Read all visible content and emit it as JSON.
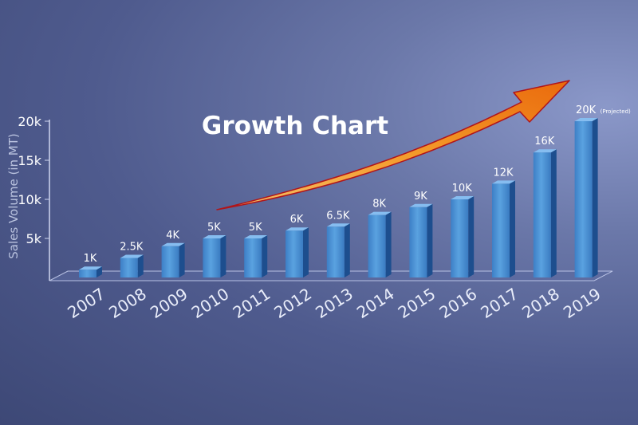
{
  "chart_data": {
    "type": "bar",
    "title": "Growth Chart",
    "xlabel": "",
    "ylabel": "Sales Volume (in MT)",
    "ylim": [
      0,
      20000
    ],
    "yticks": [
      {
        "value": 5000,
        "label": "5k"
      },
      {
        "value": 10000,
        "label": "10k"
      },
      {
        "value": 15000,
        "label": "15k"
      },
      {
        "value": 20000,
        "label": "20k"
      }
    ],
    "categories": [
      "2007",
      "2008",
      "2009",
      "2010",
      "2011",
      "2012",
      "2013",
      "2014",
      "2015",
      "2016",
      "2017",
      "2018",
      "2019"
    ],
    "values": [
      1000,
      2500,
      4000,
      5000,
      5000,
      6000,
      6500,
      8000,
      9000,
      10000,
      12000,
      16000,
      20000
    ],
    "data_labels": [
      "1K",
      "2.5K",
      "4K",
      "5K",
      "5K",
      "6K",
      "6.5K",
      "8K",
      "9K",
      "10K",
      "12K",
      "16K",
      "20K"
    ],
    "annotations": [
      {
        "category": "2019",
        "text": "(Projected)"
      }
    ],
    "grid": false,
    "legend": "none",
    "colors": {
      "bar_front": "#4a90d4",
      "bar_side": "#1d4e8e",
      "bar_top": "#86bdf0",
      "arrow": "#f07a12",
      "arrow_edge": "#b0151a"
    }
  }
}
